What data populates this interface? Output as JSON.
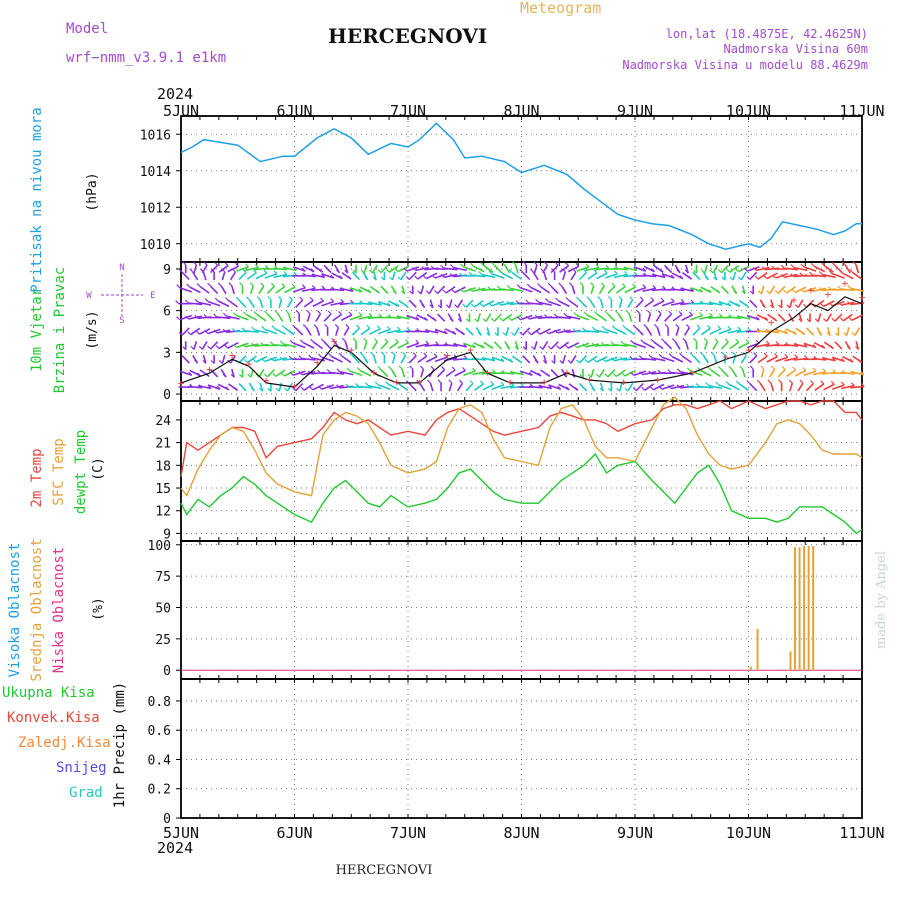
{
  "header": {
    "model_label": "Model",
    "model_name": "wrf−nmm_v3.9.1  e1km",
    "meteogram_label": "Meteogram",
    "station": "HERCEGNOVI",
    "lonlat": "lon,lat (18.4875E, 42.4625N)",
    "elevation": "Nadmorska Visina 60m",
    "model_elevation": "Nadmorska Visina u modelu 88.4629m"
  },
  "footer": {
    "station": "HERCEGNOVI",
    "watermark": "made by Angel"
  },
  "colors": {
    "pressure": "#1ea0e6",
    "temp2m": "#e8473c",
    "sfc_temp": "#e3a23a",
    "dewpoint": "#22c832",
    "cloud_mid": "#e3a23a",
    "wind_purple": "#8a2be2",
    "wind_cyan": "#19c8c8",
    "wind_green": "#3cd23c",
    "wind_orange": "#f5a028",
    "wind_red": "#f03c3c",
    "purple_text": "#a24bd0"
  },
  "chart_data": [
    {
      "type": "line",
      "name": "pressure",
      "ylabel_left": "Pritisak na nivou mora",
      "unit": "(hPa)",
      "xlim": [
        0,
        6
      ],
      "ylim": [
        1009,
        1017
      ],
      "yticks": [
        "1010",
        "1012",
        "1014",
        "1016"
      ],
      "x_axis": {
        "year_top": "2024",
        "year_bottom": "2024",
        "ticks": [
          "5JUN",
          "6JUN",
          "7JUN",
          "8JUN",
          "9JUN",
          "10JUN",
          "11JUN"
        ]
      },
      "x": [
        0,
        0.1,
        0.2,
        0.3,
        0.5,
        0.7,
        0.9,
        1.0,
        1.2,
        1.35,
        1.5,
        1.65,
        1.85,
        2.0,
        2.1,
        2.25,
        2.4,
        2.5,
        2.65,
        2.85,
        3.0,
        3.2,
        3.4,
        3.55,
        3.7,
        3.85,
        4.0,
        4.15,
        4.3,
        4.5,
        4.65,
        4.8,
        5.0,
        5.1,
        5.2,
        5.3,
        5.45,
        5.6,
        5.75,
        5.85,
        5.95,
        6.0
      ],
      "values": [
        1015.0,
        1015.3,
        1015.7,
        1015.6,
        1015.4,
        1014.5,
        1014.8,
        1014.8,
        1015.8,
        1016.3,
        1015.8,
        1014.9,
        1015.5,
        1015.3,
        1015.7,
        1016.6,
        1015.7,
        1014.7,
        1014.8,
        1014.5,
        1013.9,
        1014.3,
        1013.8,
        1013.0,
        1012.3,
        1011.6,
        1011.3,
        1011.1,
        1011.0,
        1010.5,
        1010.0,
        1009.7,
        1010.0,
        1009.8,
        1010.3,
        1011.2,
        1011.0,
        1010.8,
        1010.5,
        1010.7,
        1011.1,
        1011.1
      ]
    },
    {
      "type": "line",
      "name": "wind",
      "ylabel_left1": "10m Vjetar",
      "ylabel_left2": "Brzina i Pravac",
      "unit": "(m/s)",
      "compass": {
        "n": "N",
        "s": "S",
        "e": "E",
        "w": "W"
      },
      "xlim": [
        0,
        6
      ],
      "ylim": [
        -0.5,
        9.5
      ],
      "yticks": [
        "0",
        "3",
        "6",
        "9"
      ],
      "barb_levels": [
        0.5,
        1.5,
        2.5,
        3.5,
        4.5,
        5.5,
        6.5,
        7.5,
        8.5,
        9.0
      ],
      "x": [
        0,
        0.25,
        0.45,
        0.6,
        0.75,
        1.0,
        1.2,
        1.35,
        1.5,
        1.7,
        1.9,
        2.1,
        2.35,
        2.55,
        2.7,
        2.9,
        3.2,
        3.4,
        3.6,
        3.9,
        4.2,
        4.5,
        4.8,
        5.0,
        5.2,
        5.4,
        5.55,
        5.7,
        5.85,
        6.0
      ],
      "speed": [
        0.8,
        1.5,
        2.5,
        2.0,
        0.8,
        0.5,
        2.0,
        3.5,
        3.0,
        1.5,
        0.8,
        0.8,
        2.5,
        3.0,
        1.5,
        0.8,
        0.8,
        1.5,
        1.0,
        0.8,
        1.0,
        1.5,
        2.5,
        3.0,
        4.5,
        5.5,
        6.5,
        6.0,
        7.0,
        6.5
      ],
      "gust": [
        0.8,
        1.8,
        2.8,
        2.2,
        1.0,
        0.6,
        2.3,
        3.8,
        3.2,
        1.6,
        0.9,
        0.9,
        2.8,
        3.2,
        1.6,
        0.9,
        0.9,
        1.6,
        1.1,
        0.9,
        1.1,
        1.6,
        2.7,
        3.2,
        5.2,
        6.8,
        7.5,
        7.2,
        8.0,
        7.0
      ]
    },
    {
      "type": "line",
      "name": "temperature",
      "ylabel_left1": "2m Temp",
      "ylabel_left2": "SFC Temp",
      "ylabel_left3": "dewpt Temp",
      "unit": "(C)",
      "xlim": [
        0,
        6
      ],
      "ylim": [
        8,
        26.5
      ],
      "yticks": [
        "9",
        "12",
        "15",
        "18",
        "21",
        "24"
      ],
      "x": [
        0,
        0.05,
        0.15,
        0.25,
        0.35,
        0.45,
        0.55,
        0.65,
        0.75,
        0.85,
        1.0,
        1.15,
        1.25,
        1.35,
        1.45,
        1.55,
        1.65,
        1.75,
        1.85,
        2.0,
        2.15,
        2.25,
        2.35,
        2.45,
        2.55,
        2.65,
        2.75,
        2.85,
        3.0,
        3.15,
        3.25,
        3.35,
        3.45,
        3.55,
        3.65,
        3.75,
        3.85,
        4.0,
        4.15,
        4.25,
        4.35,
        4.45,
        4.55,
        4.65,
        4.75,
        4.85,
        5.0,
        5.15,
        5.25,
        5.35,
        5.45,
        5.55,
        5.65,
        5.75,
        5.85,
        5.95,
        6.0
      ],
      "temp2m": [
        16.5,
        21,
        20,
        21,
        22,
        23,
        23,
        22.5,
        19,
        20.5,
        21,
        21.5,
        23,
        25,
        24,
        23.5,
        24,
        23,
        22,
        22.5,
        22,
        24,
        25,
        25.5,
        24.5,
        23.5,
        22.5,
        22,
        22.5,
        23,
        24.5,
        25,
        24.5,
        24,
        24,
        23.5,
        22.5,
        23.5,
        24,
        25.5,
        26,
        26,
        25.5,
        26,
        26.5,
        25.5,
        26.5,
        25.5,
        26,
        26.5,
        26.5,
        26,
        26.5,
        26.5,
        25,
        25,
        24
      ],
      "sfc_temp": [
        15,
        14,
        17.5,
        20,
        22,
        23,
        22.5,
        20,
        17,
        15.5,
        14.5,
        14,
        22,
        24,
        25,
        24.5,
        23.5,
        21,
        18,
        17,
        17.5,
        18.5,
        23,
        25.5,
        26,
        25,
        21.5,
        19,
        18.5,
        18,
        23,
        25.5,
        26,
        24,
        20.5,
        19,
        19,
        18.5,
        23,
        26,
        27,
        25.5,
        22,
        19.5,
        18,
        17.5,
        18,
        21,
        23.5,
        24,
        23.5,
        22,
        20,
        19.5,
        19.5,
        19.5,
        19
      ],
      "dewpoint": [
        13,
        11.5,
        13.5,
        12.5,
        14,
        15,
        16.5,
        15.5,
        14,
        13,
        11.5,
        10.5,
        13,
        15,
        16,
        14.5,
        13,
        12.5,
        14,
        12.5,
        13,
        13.5,
        15,
        17,
        17.5,
        16,
        14.5,
        13.5,
        13,
        13,
        14.5,
        16,
        17,
        18,
        19.5,
        17,
        18,
        18.5,
        16,
        14.5,
        13,
        15,
        17,
        18,
        15.5,
        12,
        11,
        11,
        10.5,
        11,
        12.5,
        12.5,
        12.5,
        11.5,
        10.5,
        9,
        9.5
      ]
    },
    {
      "type": "bar",
      "name": "cloud",
      "ylabel_left1": "Visoka Oblacnost",
      "ylabel_left2": "Srednja Oblacnost",
      "ylabel_left3": "Niska  Oblacnost",
      "unit": "(%)",
      "xlim": [
        0,
        6
      ],
      "ylim": [
        -7,
        103
      ],
      "yticks": [
        "0",
        "25",
        "50",
        "75",
        "100"
      ],
      "x": [
        5.02,
        5.08,
        5.37,
        5.41,
        5.45,
        5.49,
        5.53,
        5.57
      ],
      "values": [
        3,
        33,
        15,
        98,
        98,
        99,
        99,
        99
      ]
    },
    {
      "type": "bar",
      "name": "precipitation",
      "ylabel_left": "1hr Precip",
      "unit": "(mm)",
      "legend": [
        "Ukupna  Kisa",
        "Konvek.Kisa",
        "Zaledj.Kisa",
        "Snijeg",
        "Grad"
      ],
      "xlim": [
        0,
        6
      ],
      "ylim": [
        0,
        0.95
      ],
      "yticks": [
        "0",
        "0.2",
        "0.4",
        "0.6",
        "0.8"
      ],
      "x": [],
      "values": []
    }
  ]
}
